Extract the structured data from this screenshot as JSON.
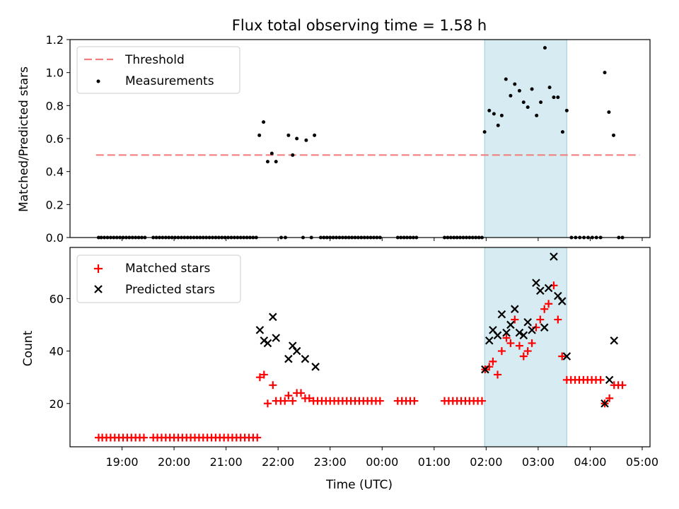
{
  "chart_data": {
    "title": "Flux total observing time = 1.58 h",
    "xlabel": "Time (UTC)",
    "x_ticks": [
      "19:00",
      "20:00",
      "21:00",
      "22:00",
      "23:00",
      "00:00",
      "01:00",
      "02:00",
      "03:00",
      "04:00",
      "05:00"
    ],
    "x_tick_hours": [
      19,
      20,
      21,
      22,
      23,
      24,
      25,
      26,
      27,
      28,
      29
    ],
    "xlim_hours": [
      18.0,
      29.15
    ],
    "shaded_span_hours": [
      25.97,
      27.55
    ],
    "shaded_color": "#add8e6",
    "top": {
      "type": "scatter",
      "ylabel": "Matched/Predicted stars",
      "ylim": [
        0,
        1.2
      ],
      "yticks": [
        "0.0",
        "0.2",
        "0.4",
        "0.6",
        "0.8",
        "1.0",
        "1.2"
      ],
      "ytick_values": [
        0,
        0.2,
        0.4,
        0.6,
        0.8,
        1.0,
        1.2
      ],
      "legend": {
        "threshold_label": "Threshold",
        "measurements_label": "Measurements",
        "position": "upper-left"
      },
      "threshold": {
        "value": 0.5,
        "x_range_hours": [
          18.5,
          28.95
        ],
        "color": "#f08080"
      },
      "measurements_color": "#000000",
      "measurements": [
        [
          18.55,
          0
        ],
        [
          18.6,
          0
        ],
        [
          18.66,
          0
        ],
        [
          18.72,
          0
        ],
        [
          18.78,
          0
        ],
        [
          18.84,
          0
        ],
        [
          18.9,
          0
        ],
        [
          18.96,
          0
        ],
        [
          19.02,
          0
        ],
        [
          19.08,
          0
        ],
        [
          19.14,
          0
        ],
        [
          19.2,
          0
        ],
        [
          19.26,
          0
        ],
        [
          19.32,
          0
        ],
        [
          19.38,
          0
        ],
        [
          19.44,
          0
        ],
        [
          19.6,
          0
        ],
        [
          19.66,
          0
        ],
        [
          19.72,
          0
        ],
        [
          19.78,
          0
        ],
        [
          19.84,
          0
        ],
        [
          19.9,
          0
        ],
        [
          19.96,
          0
        ],
        [
          20.02,
          0
        ],
        [
          20.08,
          0
        ],
        [
          20.14,
          0
        ],
        [
          20.2,
          0
        ],
        [
          20.26,
          0
        ],
        [
          20.32,
          0
        ],
        [
          20.38,
          0
        ],
        [
          20.44,
          0
        ],
        [
          20.5,
          0
        ],
        [
          20.56,
          0
        ],
        [
          20.62,
          0
        ],
        [
          20.68,
          0
        ],
        [
          20.74,
          0
        ],
        [
          20.8,
          0
        ],
        [
          20.86,
          0
        ],
        [
          20.92,
          0
        ],
        [
          20.98,
          0
        ],
        [
          21.04,
          0
        ],
        [
          21.1,
          0
        ],
        [
          21.16,
          0
        ],
        [
          21.22,
          0
        ],
        [
          21.28,
          0
        ],
        [
          21.34,
          0
        ],
        [
          21.4,
          0
        ],
        [
          21.46,
          0
        ],
        [
          21.52,
          0
        ],
        [
          21.58,
          0
        ],
        [
          21.64,
          0.62
        ],
        [
          21.72,
          0.7
        ],
        [
          21.8,
          0.46
        ],
        [
          21.88,
          0.51
        ],
        [
          21.96,
          0.46
        ],
        [
          22.06,
          0
        ],
        [
          22.14,
          0
        ],
        [
          22.2,
          0.62
        ],
        [
          22.28,
          0.5
        ],
        [
          22.36,
          0.6
        ],
        [
          22.48,
          0
        ],
        [
          22.54,
          0.59
        ],
        [
          22.64,
          0
        ],
        [
          22.7,
          0.62
        ],
        [
          22.82,
          0
        ],
        [
          22.88,
          0
        ],
        [
          22.94,
          0
        ],
        [
          23.0,
          0
        ],
        [
          23.06,
          0
        ],
        [
          23.12,
          0
        ],
        [
          23.18,
          0
        ],
        [
          23.24,
          0
        ],
        [
          23.3,
          0
        ],
        [
          23.36,
          0
        ],
        [
          23.42,
          0
        ],
        [
          23.48,
          0
        ],
        [
          23.54,
          0
        ],
        [
          23.6,
          0
        ],
        [
          23.66,
          0
        ],
        [
          23.72,
          0
        ],
        [
          23.78,
          0
        ],
        [
          23.84,
          0
        ],
        [
          23.9,
          0
        ],
        [
          23.96,
          0
        ],
        [
          24.3,
          0
        ],
        [
          24.36,
          0
        ],
        [
          24.42,
          0
        ],
        [
          24.48,
          0
        ],
        [
          24.54,
          0
        ],
        [
          24.6,
          0
        ],
        [
          24.66,
          0
        ],
        [
          25.2,
          0
        ],
        [
          25.26,
          0
        ],
        [
          25.32,
          0
        ],
        [
          25.38,
          0
        ],
        [
          25.44,
          0
        ],
        [
          25.5,
          0
        ],
        [
          25.56,
          0
        ],
        [
          25.62,
          0
        ],
        [
          25.68,
          0
        ],
        [
          25.74,
          0
        ],
        [
          25.8,
          0
        ],
        [
          25.86,
          0
        ],
        [
          25.92,
          0
        ],
        [
          25.97,
          0.64
        ],
        [
          26.06,
          0.77
        ],
        [
          26.15,
          0.75
        ],
        [
          26.23,
          0.68
        ],
        [
          26.3,
          0.74
        ],
        [
          26.38,
          0.96
        ],
        [
          26.47,
          0.86
        ],
        [
          26.55,
          0.93
        ],
        [
          26.64,
          0.89
        ],
        [
          26.72,
          0.82
        ],
        [
          26.8,
          0.79
        ],
        [
          26.88,
          0.9
        ],
        [
          26.97,
          0.74
        ],
        [
          27.05,
          0.82
        ],
        [
          27.13,
          1.15
        ],
        [
          27.22,
          0.91
        ],
        [
          27.3,
          0.85
        ],
        [
          27.38,
          0.85
        ],
        [
          27.47,
          0.64
        ],
        [
          27.55,
          0.77
        ],
        [
          27.64,
          0
        ],
        [
          27.72,
          0
        ],
        [
          27.8,
          0
        ],
        [
          27.88,
          0
        ],
        [
          27.96,
          0
        ],
        [
          28.04,
          0
        ],
        [
          28.12,
          0
        ],
        [
          28.2,
          0
        ],
        [
          28.28,
          1.0
        ],
        [
          28.36,
          0.76
        ],
        [
          28.45,
          0.62
        ],
        [
          28.55,
          0
        ],
        [
          28.62,
          0
        ]
      ]
    },
    "bottom": {
      "type": "scatter",
      "ylabel": "Count",
      "ylim": [
        3.5,
        79.5
      ],
      "yticks": [
        "20",
        "40",
        "60"
      ],
      "ytick_values": [
        20,
        40,
        60
      ],
      "legend": {
        "matched_label": "Matched stars",
        "predicted_label": "Predicted stars",
        "position": "upper-left"
      },
      "matched_color": "#ff0000",
      "predicted_color": "#000000",
      "matched": [
        [
          18.55,
          7
        ],
        [
          18.62,
          7
        ],
        [
          18.7,
          7
        ],
        [
          18.78,
          7
        ],
        [
          18.86,
          7
        ],
        [
          18.94,
          7
        ],
        [
          19.02,
          7
        ],
        [
          19.1,
          7
        ],
        [
          19.18,
          7
        ],
        [
          19.26,
          7
        ],
        [
          19.34,
          7
        ],
        [
          19.42,
          7
        ],
        [
          19.6,
          7
        ],
        [
          19.68,
          7
        ],
        [
          19.76,
          7
        ],
        [
          19.84,
          7
        ],
        [
          19.92,
          7
        ],
        [
          20.0,
          7
        ],
        [
          20.08,
          7
        ],
        [
          20.16,
          7
        ],
        [
          20.24,
          7
        ],
        [
          20.32,
          7
        ],
        [
          20.4,
          7
        ],
        [
          20.48,
          7
        ],
        [
          20.56,
          7
        ],
        [
          20.64,
          7
        ],
        [
          20.72,
          7
        ],
        [
          20.8,
          7
        ],
        [
          20.88,
          7
        ],
        [
          20.96,
          7
        ],
        [
          21.04,
          7
        ],
        [
          21.12,
          7
        ],
        [
          21.2,
          7
        ],
        [
          21.28,
          7
        ],
        [
          21.36,
          7
        ],
        [
          21.44,
          7
        ],
        [
          21.52,
          7
        ],
        [
          21.6,
          7
        ],
        [
          21.65,
          30
        ],
        [
          21.73,
          31
        ],
        [
          21.8,
          20
        ],
        [
          21.9,
          27
        ],
        [
          21.96,
          21
        ],
        [
          22.05,
          21
        ],
        [
          22.13,
          21
        ],
        [
          22.2,
          23
        ],
        [
          22.28,
          21
        ],
        [
          22.36,
          24
        ],
        [
          22.44,
          24
        ],
        [
          22.52,
          22
        ],
        [
          22.6,
          22
        ],
        [
          22.68,
          21
        ],
        [
          22.76,
          21
        ],
        [
          22.84,
          21
        ],
        [
          22.92,
          21
        ],
        [
          23.0,
          21
        ],
        [
          23.08,
          21
        ],
        [
          23.16,
          21
        ],
        [
          23.24,
          21
        ],
        [
          23.32,
          21
        ],
        [
          23.4,
          21
        ],
        [
          23.48,
          21
        ],
        [
          23.56,
          21
        ],
        [
          23.64,
          21
        ],
        [
          23.72,
          21
        ],
        [
          23.8,
          21
        ],
        [
          23.88,
          21
        ],
        [
          23.96,
          21
        ],
        [
          24.3,
          21
        ],
        [
          24.38,
          21
        ],
        [
          24.46,
          21
        ],
        [
          24.54,
          21
        ],
        [
          24.62,
          21
        ],
        [
          25.2,
          21
        ],
        [
          25.28,
          21
        ],
        [
          25.36,
          21
        ],
        [
          25.44,
          21
        ],
        [
          25.52,
          21
        ],
        [
          25.6,
          21
        ],
        [
          25.68,
          21
        ],
        [
          25.76,
          21
        ],
        [
          25.84,
          21
        ],
        [
          25.92,
          21
        ],
        [
          25.98,
          33
        ],
        [
          26.06,
          34
        ],
        [
          26.13,
          36
        ],
        [
          26.22,
          31
        ],
        [
          26.3,
          40
        ],
        [
          26.39,
          45
        ],
        [
          26.47,
          43
        ],
        [
          26.55,
          52
        ],
        [
          26.64,
          42
        ],
        [
          26.72,
          38
        ],
        [
          26.8,
          40
        ],
        [
          26.88,
          43
        ],
        [
          26.96,
          49
        ],
        [
          27.04,
          52
        ],
        [
          27.12,
          56
        ],
        [
          27.2,
          58
        ],
        [
          27.3,
          65
        ],
        [
          27.38,
          52
        ],
        [
          27.46,
          38
        ],
        [
          27.55,
          29
        ],
        [
          27.63,
          29
        ],
        [
          27.71,
          29
        ],
        [
          27.79,
          29
        ],
        [
          27.87,
          29
        ],
        [
          27.95,
          29
        ],
        [
          28.03,
          29
        ],
        [
          28.11,
          29
        ],
        [
          28.2,
          29
        ],
        [
          28.28,
          20
        ],
        [
          28.37,
          22
        ],
        [
          28.46,
          27
        ],
        [
          28.54,
          27
        ],
        [
          28.62,
          27
        ]
      ],
      "predicted": [
        [
          21.65,
          48
        ],
        [
          21.73,
          44
        ],
        [
          21.8,
          43
        ],
        [
          21.9,
          53
        ],
        [
          21.96,
          45
        ],
        [
          22.2,
          37
        ],
        [
          22.28,
          42
        ],
        [
          22.36,
          40
        ],
        [
          22.52,
          37
        ],
        [
          22.72,
          34
        ],
        [
          25.98,
          33
        ],
        [
          26.06,
          44
        ],
        [
          26.13,
          48
        ],
        [
          26.22,
          46
        ],
        [
          26.3,
          54
        ],
        [
          26.39,
          47
        ],
        [
          26.47,
          50
        ],
        [
          26.55,
          56
        ],
        [
          26.64,
          47
        ],
        [
          26.72,
          46
        ],
        [
          26.8,
          51
        ],
        [
          26.88,
          48
        ],
        [
          26.96,
          66
        ],
        [
          27.04,
          63
        ],
        [
          27.12,
          49
        ],
        [
          27.2,
          64
        ],
        [
          27.3,
          76
        ],
        [
          27.38,
          61
        ],
        [
          27.46,
          59
        ],
        [
          27.55,
          38
        ],
        [
          28.28,
          20
        ],
        [
          28.37,
          29
        ],
        [
          28.46,
          44
        ]
      ]
    }
  }
}
